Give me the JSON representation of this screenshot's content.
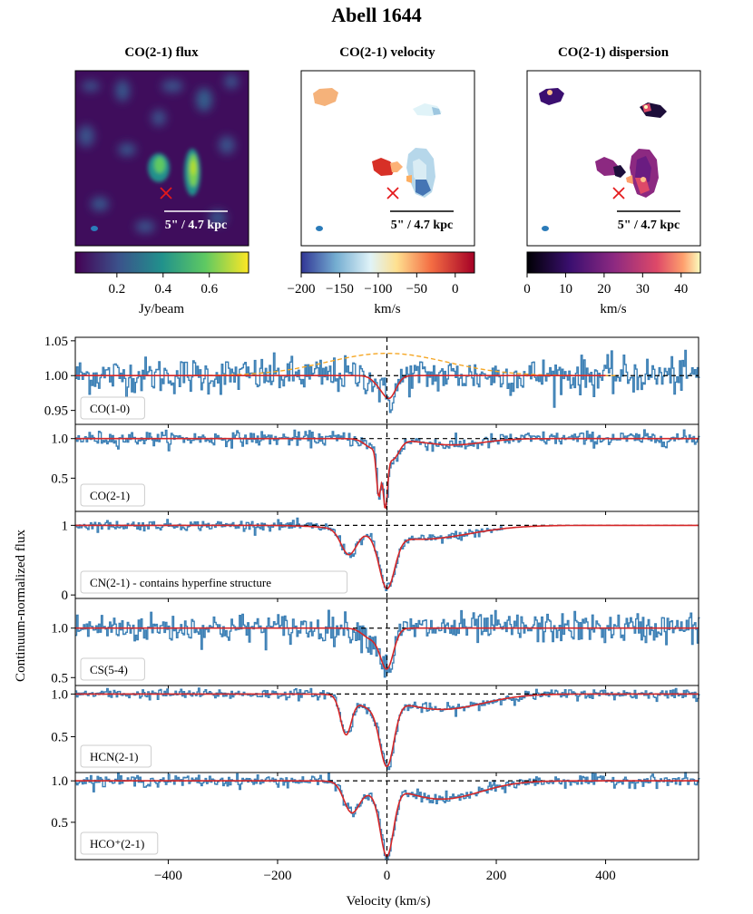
{
  "figure": {
    "title": "Abell 1644"
  },
  "maps": [
    {
      "key": "flux",
      "title": "CO(2-1) flux",
      "cmap": "viridis",
      "cbar_ticks": [
        "0.2",
        "0.4",
        "0.6"
      ],
      "cbar_tick_values": [
        0.2,
        0.4,
        0.6
      ],
      "cbar_range": [
        0.02,
        0.77
      ],
      "cbar_label": "Jy/beam",
      "scalebar": "5\" / 4.7 kpc"
    },
    {
      "key": "velocity",
      "title": "CO(2-1) velocity",
      "cmap": "RdYlBu_r",
      "cbar_ticks": [
        "−200",
        "−150",
        "−100",
        "−50",
        "0"
      ],
      "cbar_tick_values": [
        -200,
        -150,
        -100,
        -50,
        0
      ],
      "cbar_range": [
        -200,
        25
      ],
      "cbar_label": "km/s",
      "scalebar": "5\" / 4.7 kpc"
    },
    {
      "key": "dispersion",
      "title": "CO(2-1) dispersion",
      "cmap": "magma",
      "cbar_ticks": [
        "0",
        "10",
        "20",
        "30",
        "40"
      ],
      "cbar_tick_values": [
        0,
        10,
        20,
        30,
        40
      ],
      "cbar_range": [
        0,
        45
      ],
      "cbar_label": "km/s",
      "scalebar": "5\" / 4.7 kpc"
    }
  ],
  "spectra_axes": {
    "xlabel": "Velocity (km/s)",
    "ylabel": "Continuum-normalized flux",
    "xlim": [
      -570,
      570
    ],
    "xticks": [
      -400,
      -200,
      0,
      200,
      400
    ],
    "xtick_labels": [
      "−400",
      "−200",
      "0",
      "200",
      "400"
    ]
  },
  "colors": {
    "data": "#3b7fb5",
    "fit": "#d62728",
    "ref": "#000000",
    "orange": "#f5a623",
    "marker": "#e41a1c",
    "beam": "#2b7bb9"
  },
  "chart_data": [
    {
      "type": "line",
      "panel": "CO(1-0)",
      "label": "CO(1-0)",
      "ylim": [
        0.93,
        1.055
      ],
      "yticks": [
        0.95,
        1.0,
        1.05
      ],
      "ytick_labels": [
        "0.95",
        "1.00",
        "1.05"
      ],
      "noise": 0.013,
      "baseline": 1.0,
      "fit_xmax": 400,
      "components": [
        {
          "center": 5,
          "depth": 0.03,
          "width": 12
        },
        {
          "center": -15,
          "depth": 0.01,
          "width": 12
        }
      ],
      "extra_curve": {
        "label": "",
        "center": 0,
        "amplitude": 0.032,
        "width": 110,
        "style": "dashed"
      },
      "fit_x": [
        -350,
        -100,
        -50,
        -20,
        -10,
        0,
        5,
        10,
        20,
        50,
        100,
        400
      ],
      "fit_y": [
        1.0,
        1.0,
        0.998,
        0.99,
        0.981,
        0.972,
        0.97,
        0.972,
        0.985,
        0.999,
        1.0,
        1.0
      ]
    },
    {
      "type": "line",
      "panel": "CO(2-1)",
      "label": "CO(2-1)",
      "ylim": [
        0.08,
        1.18
      ],
      "yticks": [
        0.5,
        1.0
      ],
      "ytick_labels": [
        "0.5",
        "1.0"
      ],
      "noise": 0.045,
      "baseline": 1.0,
      "fit_xmax": 570,
      "components": [
        {
          "center": -15,
          "depth": 0.6,
          "width": 4
        },
        {
          "center": -3,
          "depth": 0.7,
          "width": 4
        },
        {
          "center": -25,
          "depth": 0.12,
          "width": 15
        },
        {
          "center": 10,
          "depth": 0.25,
          "width": 12
        },
        {
          "center": 120,
          "depth": 0.08,
          "width": 55
        }
      ],
      "fit_x": [
        -200,
        -80,
        -40,
        -20,
        -15,
        -10,
        -3,
        5,
        20,
        60,
        120,
        200,
        570
      ],
      "fit_y": [
        1.0,
        1.0,
        0.88,
        0.7,
        0.3,
        0.6,
        0.25,
        0.7,
        0.9,
        0.94,
        0.92,
        0.985,
        1.0
      ]
    },
    {
      "type": "line",
      "panel": "CN(2-1)",
      "label": "CN(2-1) - contains hyperfine structure",
      "ylim": [
        -0.05,
        1.2
      ],
      "yticks": [
        0,
        1
      ],
      "ytick_labels": [
        "0",
        "1"
      ],
      "noise": 0.035,
      "baseline": 1.0,
      "data_xmax": 210,
      "fit_xmax": 570,
      "components": [
        {
          "center": -70,
          "depth": 0.35,
          "width": 14
        },
        {
          "center": 0,
          "depth": 0.75,
          "width": 14
        },
        {
          "center": 60,
          "depth": 0.2,
          "width": 90
        }
      ],
      "fit_x": [
        -200,
        -110,
        -70,
        -40,
        -20,
        0,
        20,
        60,
        150,
        250,
        570
      ],
      "fit_y": [
        1.0,
        0.99,
        0.65,
        0.8,
        0.5,
        0.1,
        0.7,
        0.84,
        0.9,
        0.97,
        1.0
      ]
    },
    {
      "type": "line",
      "panel": "CS(5-4)",
      "label": "CS(5-4)",
      "ylim": [
        0.42,
        1.3
      ],
      "yticks": [
        0.5,
        1.0
      ],
      "ytick_labels": [
        "0.5",
        "1.0"
      ],
      "noise": 0.075,
      "baseline": 1.0,
      "fit_xmax": 570,
      "components": [
        {
          "center": 0,
          "depth": 0.4,
          "width": 12
        },
        {
          "center": -30,
          "depth": 0.1,
          "width": 15
        }
      ],
      "fit_x": [
        -200,
        -50,
        -30,
        -10,
        0,
        10,
        30,
        200
      ],
      "fit_y": [
        1.0,
        0.98,
        0.9,
        0.7,
        0.6,
        0.7,
        0.95,
        1.0
      ]
    },
    {
      "type": "line",
      "panel": "HCN(2-1)",
      "label": "HCN(2-1)",
      "ylim": [
        0.08,
        1.1
      ],
      "yticks": [
        0.5,
        1.0
      ],
      "ytick_labels": [
        "0.5",
        "1.0"
      ],
      "noise": 0.03,
      "baseline": 1.0,
      "fit_xmax": 570,
      "components": [
        {
          "center": -75,
          "depth": 0.45,
          "width": 10
        },
        {
          "center": 0,
          "depth": 0.75,
          "width": 13
        },
        {
          "center": -35,
          "depth": 0.12,
          "width": 20
        },
        {
          "center": 100,
          "depth": 0.18,
          "width": 75
        }
      ],
      "fit_x": [
        -200,
        -100,
        -75,
        -50,
        -25,
        0,
        25,
        100,
        250,
        570
      ],
      "fit_y": [
        1.0,
        0.99,
        0.55,
        0.83,
        0.6,
        0.22,
        0.7,
        0.82,
        0.97,
        1.0
      ]
    },
    {
      "type": "line",
      "panel": "HCO+(2-1)",
      "label": "HCO⁺(2-1)",
      "ylim": [
        0.05,
        1.1
      ],
      "yticks": [
        0.5,
        1.0
      ],
      "ytick_labels": [
        "0.5",
        "1.0"
      ],
      "noise": 0.035,
      "baseline": 1.0,
      "fit_xmax": 570,
      "components": [
        {
          "center": -65,
          "depth": 0.35,
          "width": 14
        },
        {
          "center": 0,
          "depth": 0.8,
          "width": 12
        },
        {
          "center": -30,
          "depth": 0.1,
          "width": 20
        },
        {
          "center": 100,
          "depth": 0.22,
          "width": 70
        }
      ],
      "fit_x": [
        -200,
        -100,
        -65,
        -40,
        -20,
        0,
        20,
        100,
        250,
        570
      ],
      "fit_y": [
        1.0,
        0.99,
        0.65,
        0.78,
        0.55,
        0.15,
        0.65,
        0.78,
        0.96,
        1.0
      ]
    }
  ]
}
